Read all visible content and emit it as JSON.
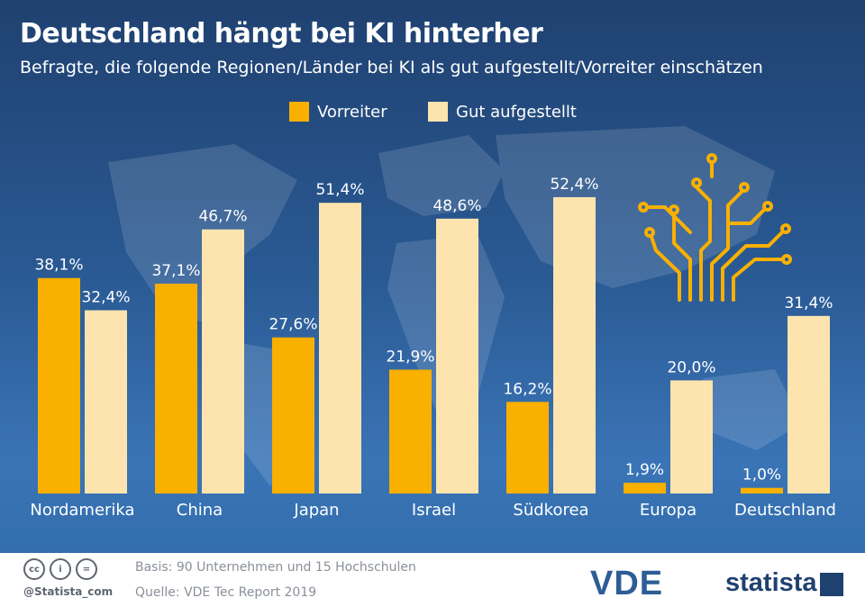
{
  "header": {
    "title": "Deutschland hängt bei KI hinterher",
    "subtitle": "Befragte, die folgende Regionen/Länder bei KI als gut aufgestellt/Vorreiter einschätzen"
  },
  "legend": [
    {
      "label": "Vorreiter",
      "color": "#f9b000"
    },
    {
      "label": "Gut aufgestellt",
      "color": "#fde4ae"
    }
  ],
  "chart_data": {
    "type": "bar",
    "title": "Deutschland hängt bei KI hinterher",
    "subtitle": "Befragte, die folgende Regionen/Länder bei KI als gut aufgestellt/Vorreiter einschätzen",
    "categories": [
      "Nordamerika",
      "China",
      "Japan",
      "Israel",
      "Südkorea",
      "Europa",
      "Deutschland"
    ],
    "series": [
      {
        "name": "Vorreiter",
        "color": "#f9b000",
        "values": [
          38.1,
          37.1,
          27.6,
          21.9,
          16.2,
          1.9,
          1.0
        ],
        "labels": [
          "38,1%",
          "37,1%",
          "27,6%",
          "21,9%",
          "16,2%",
          "1,9%",
          "1,0%"
        ]
      },
      {
        "name": "Gut aufgestellt",
        "color": "#fde4ae",
        "values": [
          32.4,
          46.7,
          51.4,
          48.6,
          52.4,
          20.0,
          31.4
        ],
        "labels": [
          "32,4%",
          "46,7%",
          "51,4%",
          "48,6%",
          "52,4%",
          "20,0%",
          "31,4%"
        ]
      }
    ],
    "xlabel": "",
    "ylabel": "",
    "ylim": [
      0,
      60
    ],
    "grid": false,
    "legend_position": "top-center"
  },
  "footer": {
    "basis": "Basis: 90 Unternehmen und 15 Hochschulen",
    "source": "Quelle: VDE Tec Report 2019",
    "handle": "@Statista_com",
    "cc_icons": [
      "cc",
      "i",
      "="
    ],
    "logo_vde": "VDE",
    "logo_statista": "statista"
  },
  "decoration": {
    "icon": "circuit-tree-icon",
    "background": "world-map-background",
    "circuit_color": "#f9b000"
  }
}
